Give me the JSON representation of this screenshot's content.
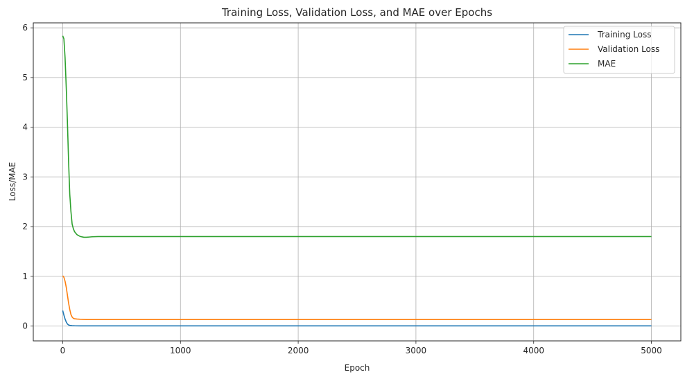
{
  "chart_data": {
    "type": "line",
    "title": "Training Loss, Validation Loss, and MAE over Epochs",
    "xlabel": "Epoch",
    "ylabel": "Loss/MAE",
    "xlim": [
      -250,
      5250
    ],
    "ylim": [
      -0.3,
      6.1
    ],
    "xticks": [
      0,
      1000,
      2000,
      3000,
      4000,
      5000
    ],
    "yticks": [
      0,
      1,
      2,
      3,
      4,
      5,
      6
    ],
    "grid": true,
    "legend_position": "top-right",
    "series": [
      {
        "name": "Training Loss",
        "color": "#1f77b4",
        "x": [
          0,
          10,
          20,
          30,
          40,
          50,
          60,
          80,
          100,
          150,
          200,
          300,
          500,
          1000,
          2000,
          3000,
          4000,
          5000
        ],
        "y": [
          0.31,
          0.22,
          0.14,
          0.08,
          0.04,
          0.02,
          0.012,
          0.006,
          0.004,
          0.003,
          0.003,
          0.003,
          0.003,
          0.003,
          0.003,
          0.003,
          0.003,
          0.003
        ]
      },
      {
        "name": "Validation Loss",
        "color": "#ff7f0e",
        "x": [
          0,
          10,
          20,
          30,
          40,
          50,
          60,
          70,
          80,
          90,
          100,
          120,
          150,
          200,
          300,
          500,
          1000,
          2000,
          3000,
          4000,
          5000
        ],
        "y": [
          1.01,
          0.98,
          0.9,
          0.78,
          0.62,
          0.46,
          0.33,
          0.23,
          0.18,
          0.155,
          0.145,
          0.14,
          0.135,
          0.13,
          0.13,
          0.13,
          0.13,
          0.13,
          0.13,
          0.13,
          0.13
        ]
      },
      {
        "name": "MAE",
        "color": "#2ca02c",
        "x": [
          0,
          10,
          20,
          30,
          40,
          50,
          60,
          70,
          80,
          90,
          100,
          120,
          150,
          180,
          200,
          250,
          300,
          400,
          500,
          1000,
          2000,
          3000,
          4000,
          5000
        ],
        "y": [
          5.84,
          5.78,
          5.4,
          4.8,
          4.1,
          3.3,
          2.65,
          2.3,
          2.05,
          1.96,
          1.9,
          1.84,
          1.8,
          1.785,
          1.785,
          1.795,
          1.8,
          1.8,
          1.8,
          1.8,
          1.8,
          1.8,
          1.8,
          1.8
        ]
      }
    ]
  }
}
